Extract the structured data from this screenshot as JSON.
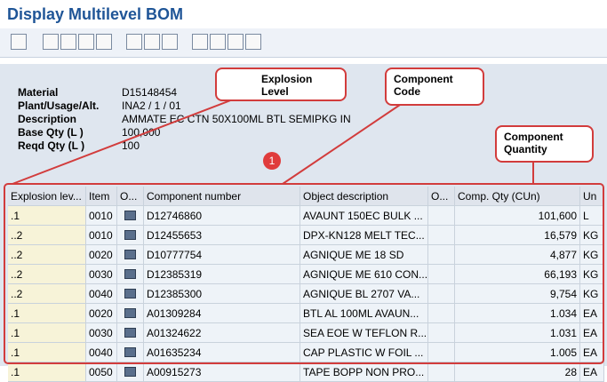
{
  "header": {
    "title": "Display Multilevel BOM"
  },
  "fields": [
    {
      "label": "Material",
      "value": "D15148454"
    },
    {
      "label": "Plant/Usage/Alt.",
      "value": "INA2 / 1 / 01"
    },
    {
      "label": "Description",
      "value": "AMMATE EC CTN 50X100ML BTL SEMIPKG IN"
    },
    {
      "label": "Base Qty (L )",
      "value": "100,000"
    },
    {
      "label": "Reqd Qty (L )",
      "value": "100"
    }
  ],
  "callouts": {
    "explosion": "Explosion Level",
    "component_code": "Component Code",
    "component_quantity": "Component Quantity",
    "badge": "1"
  },
  "table": {
    "columns": [
      "Explosion lev...",
      "Item",
      "O...",
      "Component number",
      "Object description",
      "O...",
      "Comp. Qty (CUn)",
      "Un"
    ],
    "rows": [
      [
        ".1",
        "0010",
        "D12746860",
        "AVAUNT 150EC BULK ...",
        "101,600",
        "L"
      ],
      [
        "..2",
        "0010",
        "D12455653",
        "DPX-KN128 MELT TEC...",
        "16,579",
        "KG"
      ],
      [
        "..2",
        "0020",
        "D10777754",
        "AGNIQUE ME 18 SD",
        "4,877",
        "KG"
      ],
      [
        "..2",
        "0030",
        "D12385319",
        "AGNIQUE ME 610 CON...",
        "66,193",
        "KG"
      ],
      [
        "..2",
        "0040",
        "D12385300",
        "AGNIQUE BL 2707 VA...",
        "9,754",
        "KG"
      ],
      [
        ".1",
        "0020",
        "A01309284",
        "BTL AL 100ML AVAUN...",
        "1.034",
        "EA"
      ],
      [
        ".1",
        "0030",
        "A01324622",
        "SEA EOE W TEFLON R...",
        "1.031",
        "EA"
      ],
      [
        ".1",
        "0040",
        "A01635234",
        "CAP PLASTIC W FOIL ...",
        "1.005",
        "EA"
      ],
      [
        ".1",
        "0050",
        "A00915273",
        "TAPE BOPP NON PRO...",
        "28",
        "EA"
      ]
    ]
  }
}
